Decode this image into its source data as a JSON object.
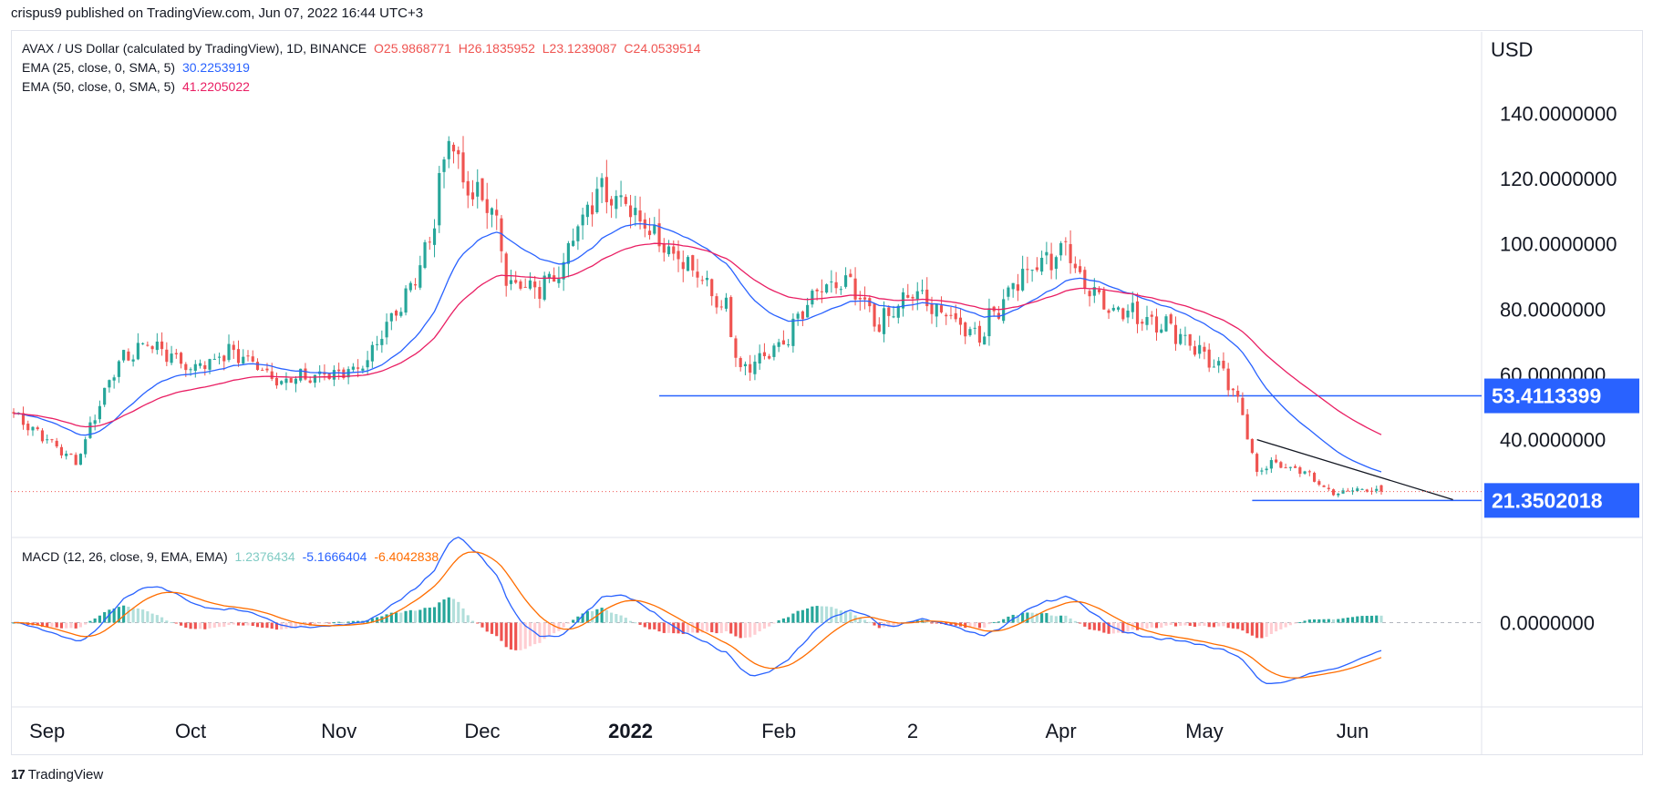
{
  "header": {
    "text": "crispus9 published on TradingView.com, Jun 07, 2022 16:44 UTC+3"
  },
  "legend": {
    "main": {
      "label": "AVAX / US Dollar (calculated by TradingView), 1D, BINANCE",
      "o": "O25.9868771",
      "h": "H26.1835952",
      "l": "L23.1239087",
      "c": "C24.0539514"
    },
    "ema25": {
      "label": "EMA (25, close, 0, SMA, 5)",
      "value": "30.2253919"
    },
    "ema50": {
      "label": "EMA (50, close, 0, SMA, 5)",
      "value": "41.2205022"
    },
    "macd": {
      "label": "MACD (12, 26, close, 9, EMA, EMA)",
      "hist": "1.2376434",
      "macd": "-5.1666404",
      "signal": "-6.4042838"
    }
  },
  "axis": {
    "currency": "USD"
  },
  "footer": {
    "brand": "TradingView"
  },
  "colors": {
    "up": "#26a69a",
    "down": "#ef5350",
    "ema25": "#2962ff",
    "ema50": "#e91e63",
    "signal": "#ff6d00",
    "hline": "#2962ff",
    "trend": "#131722",
    "price_line": "#ef5350"
  },
  "chart_data": [
    {
      "type": "candlestick",
      "title": "AVAX / US Dollar (calculated by TradingView), 1D, BINANCE",
      "ylim": [
        10,
        165
      ],
      "y_ticks": [
        {
          "value": 140,
          "label": "140.0000000"
        },
        {
          "value": 120,
          "label": "120.0000000"
        },
        {
          "value": 100,
          "label": "100.0000000"
        },
        {
          "value": 80,
          "label": "80.0000000"
        },
        {
          "value": 60,
          "label": "60.0000000"
        },
        {
          "value": 40,
          "label": "40.0000000"
        }
      ],
      "x_ticks": [
        {
          "date": "2021-09-01",
          "label": "Sep"
        },
        {
          "date": "2021-10-01",
          "label": "Oct"
        },
        {
          "date": "2021-11-01",
          "label": "Nov"
        },
        {
          "date": "2021-12-01",
          "label": "Dec"
        },
        {
          "date": "2022-01-01",
          "label": "2022"
        },
        {
          "date": "2022-02-01",
          "label": "Feb"
        },
        {
          "date": "2022-03-01",
          "label": "2"
        },
        {
          "date": "2022-04-01",
          "label": "Apr"
        },
        {
          "date": "2022-05-01",
          "label": "May"
        },
        {
          "date": "2022-06-01",
          "label": "Jun"
        }
      ],
      "keypoints": [
        [
          "2021-08-25",
          48
        ],
        [
          "2021-09-01",
          40
        ],
        [
          "2021-09-07",
          33
        ],
        [
          "2021-09-15",
          62
        ],
        [
          "2021-09-22",
          70
        ],
        [
          "2021-10-01",
          62
        ],
        [
          "2021-10-10",
          67
        ],
        [
          "2021-10-20",
          58
        ],
        [
          "2021-10-30",
          60
        ],
        [
          "2021-11-07",
          63
        ],
        [
          "2021-11-15",
          85
        ],
        [
          "2021-11-20",
          100
        ],
        [
          "2021-11-24",
          135
        ],
        [
          "2021-11-28",
          115
        ],
        [
          "2021-12-03",
          112
        ],
        [
          "2021-12-06",
          90
        ],
        [
          "2021-12-12",
          85
        ],
        [
          "2021-12-18",
          95
        ],
        [
          "2021-12-25",
          118
        ],
        [
          "2022-01-01",
          112
        ],
        [
          "2022-01-08",
          100
        ],
        [
          "2022-01-15",
          90
        ],
        [
          "2022-01-21",
          80
        ],
        [
          "2022-01-24",
          62
        ],
        [
          "2022-02-01",
          68
        ],
        [
          "2022-02-09",
          85
        ],
        [
          "2022-02-15",
          88
        ],
        [
          "2022-02-22",
          75
        ],
        [
          "2022-03-01",
          85
        ],
        [
          "2022-03-08",
          78
        ],
        [
          "2022-03-15",
          72
        ],
        [
          "2022-03-22",
          88
        ],
        [
          "2022-03-28",
          94
        ],
        [
          "2022-04-02",
          99
        ],
        [
          "2022-04-06",
          88
        ],
        [
          "2022-04-12",
          80
        ],
        [
          "2022-04-22",
          76
        ],
        [
          "2022-04-28",
          70
        ],
        [
          "2022-05-05",
          60
        ],
        [
          "2022-05-09",
          48
        ],
        [
          "2022-05-12",
          30
        ],
        [
          "2022-05-16",
          33
        ],
        [
          "2022-05-23",
          29
        ],
        [
          "2022-05-28",
          23
        ],
        [
          "2022-06-01",
          25
        ],
        [
          "2022-06-07",
          24
        ]
      ],
      "last_ohlc": {
        "date": "2022-06-07",
        "open": 25.9868771,
        "high": 26.1835952,
        "low": 23.1239087,
        "close": 24.0539514
      },
      "ema": [
        {
          "name": "EMA (25, close, 0, SMA, 5)",
          "period": 25,
          "color": "#2962ff"
        },
        {
          "name": "EMA (50, close, 0, SMA, 5)",
          "period": 50,
          "color": "#e91e63"
        }
      ],
      "horizontal_lines": [
        {
          "value": 53.4113399,
          "label": "53.4113399",
          "from": "2022-01-07"
        },
        {
          "value": 21.3502018,
          "label": "21.3502018",
          "from": "2022-05-11"
        }
      ],
      "trendline": [
        [
          "2022-05-12",
          40
        ],
        [
          "2022-06-22",
          21.6
        ]
      ],
      "last_price": 24.0539514
    },
    {
      "type": "macd",
      "title": "MACD (12, 26, close, 9, EMA, EMA)",
      "ylim": [
        -16,
        16
      ],
      "y_ticks": [
        {
          "value": 0,
          "label": "0.0000000"
        }
      ],
      "values": {
        "histogram": 1.2376434,
        "macd": -5.1666404,
        "signal": -6.4042838
      },
      "series": [
        {
          "name": "MACD",
          "color": "#2962ff"
        },
        {
          "name": "Signal",
          "color": "#ff6d00"
        },
        {
          "name": "Histogram",
          "colors": [
            "#26a69a",
            "#b2dfdb",
            "#ffcdd2",
            "#ef5350"
          ]
        }
      ]
    }
  ]
}
